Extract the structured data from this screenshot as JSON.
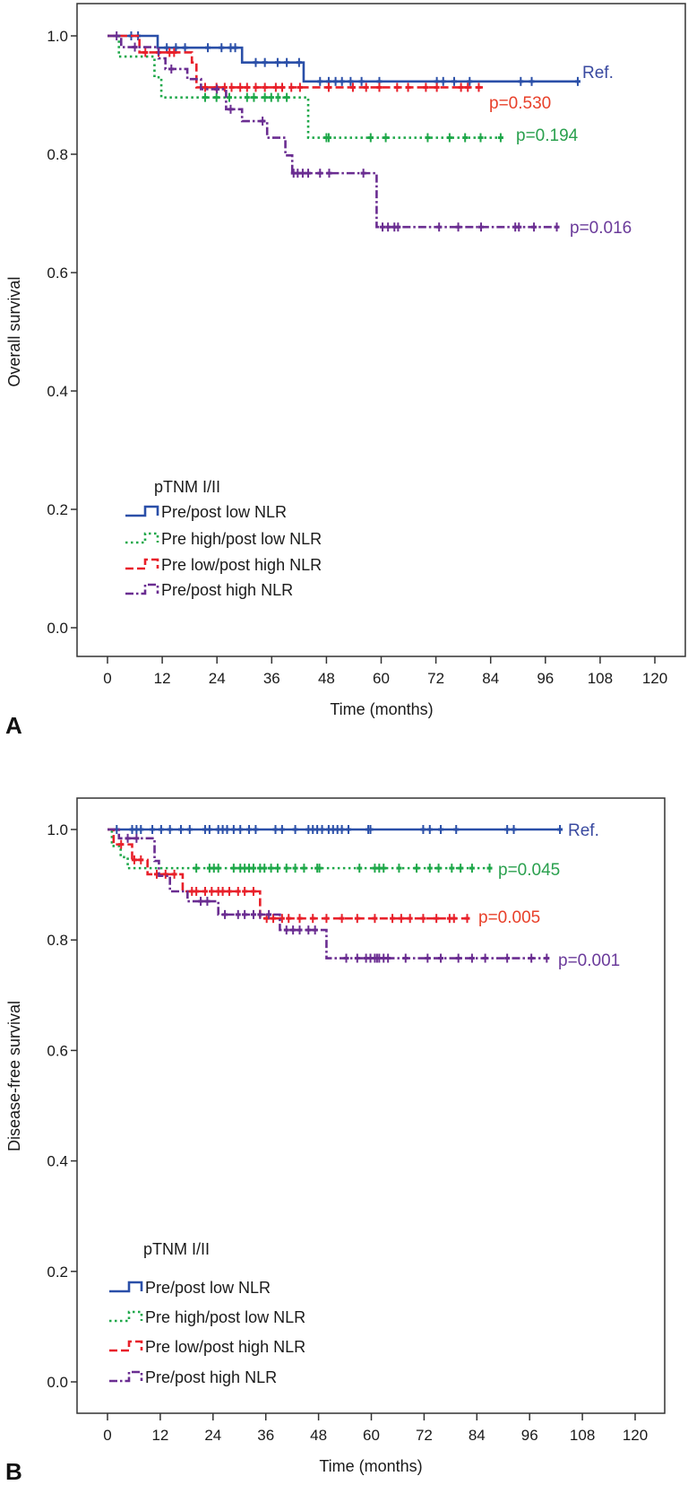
{
  "chart_data": [
    {
      "panel": "A",
      "type": "line",
      "subtype": "kaplan-meier",
      "xlabel": "Time (months)",
      "ylabel": "Overall survival",
      "xlim": [
        0,
        120
      ],
      "ylim": [
        0.0,
        1.0
      ],
      "xticks": [
        0,
        12,
        24,
        36,
        48,
        60,
        72,
        84,
        96,
        108,
        120
      ],
      "yticks": [
        "0.0",
        "0.2",
        "0.4",
        "0.6",
        "0.8",
        "1.0"
      ],
      "grid": false,
      "legend": {
        "title": "pTNM I/II",
        "placement": "bottom-left",
        "entries": [
          "Pre/post low NLR",
          "Pre high/post low NLR",
          "Pre low/post high NLR",
          "Pre/post high NLR"
        ]
      },
      "series": [
        {
          "name": "Pre/post low NLR",
          "color": "#2a4fa8",
          "line_style": "solid",
          "label": "Ref.",
          "label_color": "#3a4aa0",
          "steps": [
            [
              0,
              1.0
            ],
            [
              11,
              0.98
            ],
            [
              29.5,
              0.955
            ],
            [
              43,
              0.923
            ]
          ],
          "end": 103.5,
          "censored": [
            5.2,
            6.7,
            13,
            15,
            17,
            22,
            25,
            27,
            28,
            32.5,
            34.5,
            37.3,
            39.3,
            42,
            46.6,
            48.5,
            50,
            51.4,
            53.3,
            55.7,
            59.6,
            72.2,
            73.6,
            76,
            79.4,
            90.6,
            93,
            103.1
          ]
        },
        {
          "name": "Pre high/post low NLR",
          "color": "#1fa84a",
          "line_style": "dotted",
          "label": "p=0.194",
          "label_color": "#2aa04e",
          "steps": [
            [
              0,
              1.0
            ],
            [
              2.5,
              0.965
            ],
            [
              10.3,
              0.93
            ],
            [
              11.8,
              0.896
            ],
            [
              44,
              0.828
            ]
          ],
          "end": 86.7,
          "censored": [
            21.4,
            23.9,
            26.7,
            30.6,
            32.1,
            34.5,
            35.9,
            37.4,
            39.3,
            48,
            48.5,
            57.7,
            61,
            70.2,
            75,
            78.4,
            81.8,
            86.2
          ]
        },
        {
          "name": "Pre low/post high NLR",
          "color": "#e8202a",
          "line_style": "dashed",
          "label": "p=0.530",
          "label_color": "#e8402a",
          "steps": [
            [
              0,
              1.0
            ],
            [
              7,
              0.972
            ],
            [
              18.5,
              0.955
            ],
            [
              19.5,
              0.913
            ]
          ],
          "end": 82.3,
          "censored": [
            8.3,
            11.2,
            13.6,
            14.6,
            21.4,
            23.9,
            25.7,
            27.2,
            29.1,
            30.6,
            32.5,
            34.5,
            36.9,
            38.3,
            40.3,
            42.2,
            48.5,
            53.8,
            56.7,
            59.6,
            63.5,
            65.9,
            69.8,
            72.2,
            77.5,
            79,
            81.4
          ]
        },
        {
          "name": "Pre/post high NLR",
          "color": "#6a2d91",
          "line_style": "dash-dot",
          "label": "p=0.016",
          "label_color": "#6a3a9a",
          "steps": [
            [
              0,
              1.0
            ],
            [
              3,
              0.981
            ],
            [
              11.2,
              0.962
            ],
            [
              12.7,
              0.944
            ],
            [
              17.5,
              0.927
            ],
            [
              20.5,
              0.91
            ],
            [
              26,
              0.876
            ],
            [
              29.5,
              0.856
            ],
            [
              35,
              0.828
            ],
            [
              39,
              0.798
            ],
            [
              40.5,
              0.768
            ],
            [
              59,
              0.677
            ]
          ],
          "end": 98.9,
          "censored": [
            2,
            6,
            14,
            24,
            27,
            34,
            40.8,
            41.7,
            42.8,
            44,
            46.6,
            48.6,
            56.1,
            60.3,
            61.5,
            62.9,
            63.7,
            72.7,
            76.9,
            81.9,
            89.4,
            90.2,
            93.5,
            98.5
          ]
        }
      ]
    },
    {
      "panel": "B",
      "type": "line",
      "subtype": "kaplan-meier",
      "xlabel": "Time (months)",
      "ylabel": "Disease-free survival",
      "xlim": [
        0,
        120
      ],
      "ylim": [
        0.0,
        1.0
      ],
      "xticks": [
        0,
        12,
        24,
        36,
        48,
        60,
        72,
        84,
        96,
        108,
        120
      ],
      "yticks": [
        "0.0",
        "0.2",
        "0.4",
        "0.6",
        "0.8",
        "1.0"
      ],
      "grid": false,
      "legend": {
        "title": "pTNM I/II",
        "placement": "bottom-left",
        "entries": [
          "Pre/post low NLR",
          "Pre high/post low NLR",
          "Pre low/post high NLR",
          "Pre/post high NLR"
        ]
      },
      "series": [
        {
          "name": "Pre/post low NLR",
          "color": "#2a4fa8",
          "line_style": "solid",
          "label": "Ref.",
          "label_color": "#3a4aa0",
          "steps": [
            [
              0,
              1.0
            ]
          ],
          "end": 103.4,
          "censored": [
            2.1,
            5.6,
            6.6,
            7.6,
            10.2,
            12.2,
            14.2,
            16.7,
            18.7,
            22.2,
            23.2,
            25.2,
            26.2,
            27.2,
            28.7,
            30.2,
            32.2,
            33.7,
            38.2,
            39.7,
            42.7,
            45.7,
            46.7,
            47.7,
            48.8,
            50.3,
            51.3,
            52.3,
            53.3,
            54.8,
            59.3,
            59.8,
            71.8,
            73.3,
            75.8,
            79.3,
            90.9,
            92.4,
            102.9
          ]
        },
        {
          "name": "Pre high/post low NLR",
          "color": "#1fa84a",
          "line_style": "dotted",
          "label": "p=0.045",
          "label_color": "#2aa04e",
          "steps": [
            [
              0,
              1.0
            ],
            [
              1,
              0.97
            ],
            [
              3,
              0.95
            ],
            [
              4.6,
              0.93
            ]
          ],
          "end": 86.9,
          "censored": [
            20.2,
            23.2,
            24.2,
            25.2,
            28.7,
            30.2,
            31.2,
            32.2,
            33.2,
            34.7,
            35.7,
            37.2,
            38.7,
            40.7,
            42.7,
            44.7,
            47.7,
            48.2,
            57.3,
            60.8,
            61.8,
            62.8,
            66.3,
            70.3,
            73.3,
            75.3,
            78.3,
            80.3,
            82.9,
            86.9
          ]
        },
        {
          "name": "Pre low/post high NLR",
          "color": "#e8202a",
          "line_style": "dashed",
          "label": "p=0.005",
          "label_color": "#e8402a",
          "steps": [
            [
              0,
              1.0
            ],
            [
              1.4,
              0.973
            ],
            [
              5.6,
              0.945
            ],
            [
              9.1,
              0.919
            ],
            [
              17.1,
              0.888
            ],
            [
              34.7,
              0.839
            ]
          ],
          "end": 82.4,
          "censored": [
            3.1,
            6.1,
            7.6,
            11.2,
            13.2,
            15.2,
            19.2,
            20.2,
            22.2,
            23.7,
            25.2,
            26.2,
            27.7,
            29.7,
            31.2,
            33.2,
            36.2,
            37.7,
            39.7,
            41.2,
            43.7,
            46.7,
            49.8,
            53.3,
            56.8,
            60.8,
            64.8,
            66.8,
            68.8,
            71.8,
            74.8,
            77.8,
            78.8,
            81.8
          ]
        },
        {
          "name": "Pre/post high NLR",
          "color": "#6a2d91",
          "line_style": "dash-dot",
          "label": "p=0.001",
          "label_color": "#6a3a9a",
          "steps": [
            [
              0,
              1.0
            ],
            [
              2.6,
              0.984
            ],
            [
              10.7,
              0.943
            ],
            [
              11.7,
              0.916
            ],
            [
              14.2,
              0.888
            ],
            [
              18.2,
              0.87
            ],
            [
              25.2,
              0.846
            ],
            [
              39.2,
              0.818
            ],
            [
              49.8,
              0.767
            ]
          ],
          "end": 99.9,
          "censored": [
            4.6,
            6.6,
            21.2,
            22.7,
            26.7,
            29.7,
            31.2,
            33.2,
            34.7,
            36.7,
            40.7,
            42.2,
            43.7,
            45.7,
            47.2,
            54.3,
            56.8,
            58.8,
            59.8,
            60.8,
            61.3,
            61.8,
            62.8,
            63.8,
            67.8,
            72.8,
            75.8,
            79.8,
            82.9,
            85.9,
            90.9,
            96.4,
            99.9
          ]
        }
      ]
    }
  ]
}
